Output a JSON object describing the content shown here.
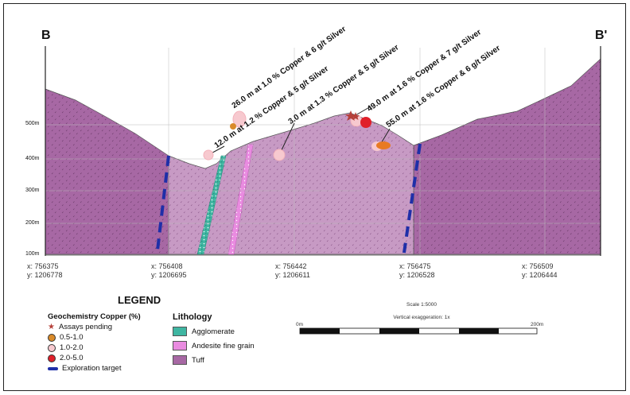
{
  "section": {
    "left_label": "B",
    "right_label": "B'",
    "elevation_labels": [
      "500m",
      "400m",
      "300m",
      "200m",
      "100m"
    ],
    "coords": [
      {
        "x": "x: 756375",
        "y": "y: 1206778"
      },
      {
        "x": "x: 756408",
        "y": "y: 1206695"
      },
      {
        "x": "x: 756442",
        "y": "y: 1206611"
      },
      {
        "x": "x: 756475",
        "y": "y: 1206528"
      },
      {
        "x": "x: 756509",
        "y": "y: 1206444"
      }
    ],
    "intercepts": [
      "26.0 m at 1.0 % Copper & 6 g/t Silver",
      "12.0 m at 1.2 % Copper & 5 g/t Silver",
      "3.0 m at 1.3 % Copper & 5 g/t Silver",
      "49.0 m at 1.6 % Copper & 7 g/t Silver",
      "55.0 m at 1.6 % Copper & 6 g/t Silver"
    ]
  },
  "legend": {
    "title": "LEGEND",
    "geochem_title": "Geochemistry Copper (%)",
    "geochem_items": [
      {
        "label": "Assays pending",
        "symbol": "star-icon",
        "color": "#b5403a"
      },
      {
        "label": "0.5-1.0",
        "symbol": "dot-icon",
        "color": "#d98a2a"
      },
      {
        "label": "1.0-2.0",
        "symbol": "dot-icon",
        "color": "#f7c9cf"
      },
      {
        "label": "2.0-5.0",
        "symbol": "dot-icon",
        "color": "#e0202a"
      },
      {
        "label": "Exploration target",
        "symbol": "dash-line-icon",
        "color": "#1f2fa8"
      }
    ],
    "lithology_title": "Lithology",
    "lithology_items": [
      {
        "label": "Agglomerate",
        "color": "#3fb6a2"
      },
      {
        "label": "Andesite fine grain",
        "color": "#e98be0"
      },
      {
        "label": "Tuff",
        "color": "#a768a4"
      }
    ]
  },
  "scale": {
    "title": "Scale 1:5000",
    "exaggeration": "Vertical exaggeration: 1x",
    "start_label": "0m",
    "end_label": "200m"
  }
}
